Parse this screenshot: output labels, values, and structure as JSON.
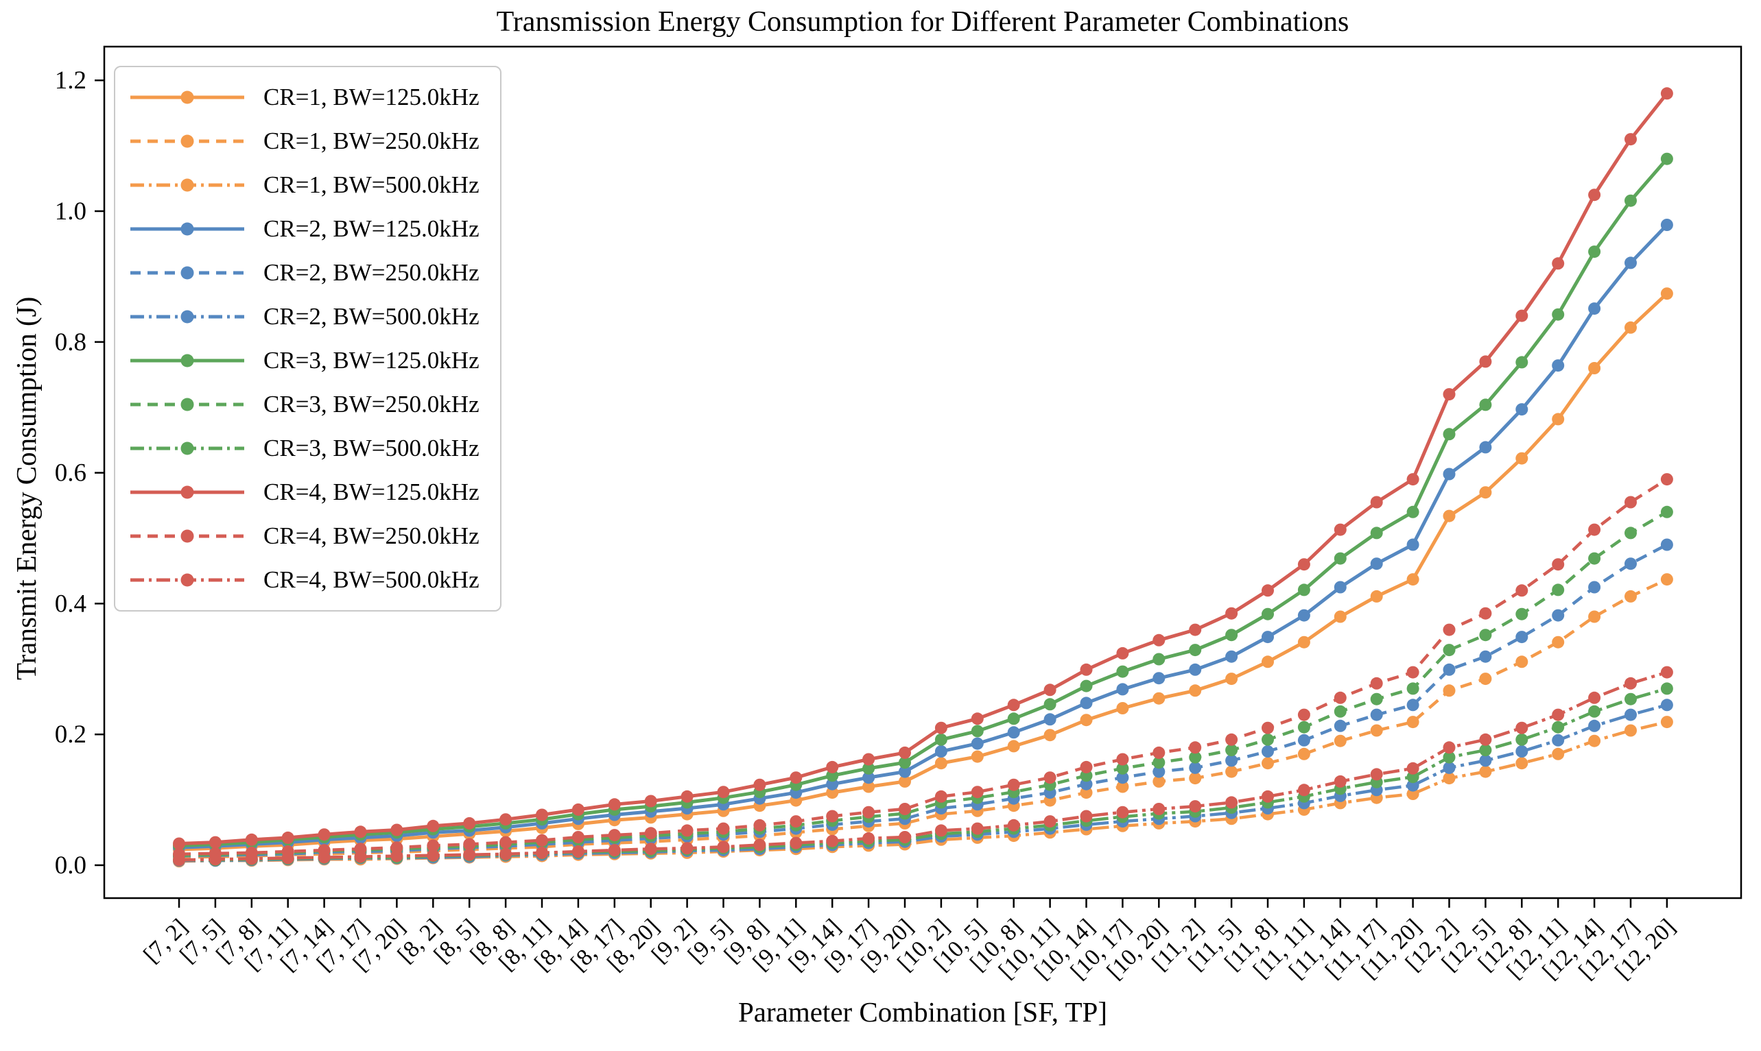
{
  "chart_data": {
    "type": "line",
    "title": "Transmission Energy Consumption for Different Parameter Combinations",
    "xlabel": "Parameter Combination [SF, TP]",
    "ylabel": "Transmit Energy Consumption (J)",
    "legend_position": "upper left",
    "grid": false,
    "ylim": [
      -0.05,
      1.25
    ],
    "yticks": [
      "0.0",
      "0.2",
      "0.4",
      "0.6",
      "0.8",
      "1.0",
      "1.2"
    ],
    "ytick_values": [
      0.0,
      0.2,
      0.4,
      0.6,
      0.8,
      1.0,
      1.2
    ],
    "categories": [
      "[7, 2]",
      "[7, 5]",
      "[7, 8]",
      "[7, 11]",
      "[7, 14]",
      "[7, 17]",
      "[7, 20]",
      "[8, 2]",
      "[8, 5]",
      "[8, 8]",
      "[8, 11]",
      "[8, 14]",
      "[8, 17]",
      "[8, 20]",
      "[9, 2]",
      "[9, 5]",
      "[9, 8]",
      "[9, 11]",
      "[9, 14]",
      "[9, 17]",
      "[9, 20]",
      "[10, 2]",
      "[10, 5]",
      "[10, 8]",
      "[10, 11]",
      "[10, 14]",
      "[10, 17]",
      "[10, 20]",
      "[11, 2]",
      "[11, 5]",
      "[11, 8]",
      "[11, 11]",
      "[11, 14]",
      "[11, 17]",
      "[11, 20]",
      "[12, 2]",
      "[12, 5]",
      "[12, 8]",
      "[12, 11]",
      "[12, 14]",
      "[12, 17]",
      "[12, 20]"
    ],
    "colors": {
      "cr1": "#F49A4A",
      "cr2": "#5588C1",
      "cr3": "#5CA65A",
      "cr4": "#D45D54"
    },
    "series": [
      {
        "name": "CR=1, BW=125.0kHz",
        "color": "#F49A4A",
        "style": "solid",
        "values": [
          0.024,
          0.026,
          0.029,
          0.031,
          0.035,
          0.038,
          0.04,
          0.044,
          0.048,
          0.052,
          0.057,
          0.063,
          0.069,
          0.073,
          0.078,
          0.083,
          0.091,
          0.099,
          0.111,
          0.12,
          0.128,
          0.156,
          0.166,
          0.182,
          0.199,
          0.222,
          0.24,
          0.255,
          0.267,
          0.285,
          0.311,
          0.341,
          0.38,
          0.411,
          0.437,
          0.534,
          0.57,
          0.622,
          0.682,
          0.76,
          0.822,
          0.874
        ]
      },
      {
        "name": "CR=1, BW=250.0kHz",
        "color": "#F49A4A",
        "style": "dashed",
        "values": [
          0.012,
          0.013,
          0.014,
          0.016,
          0.017,
          0.019,
          0.02,
          0.022,
          0.024,
          0.026,
          0.028,
          0.032,
          0.034,
          0.036,
          0.039,
          0.042,
          0.045,
          0.05,
          0.055,
          0.06,
          0.064,
          0.078,
          0.083,
          0.091,
          0.099,
          0.111,
          0.12,
          0.128,
          0.133,
          0.143,
          0.156,
          0.17,
          0.19,
          0.206,
          0.219,
          0.267,
          0.285,
          0.311,
          0.341,
          0.38,
          0.411,
          0.437
        ]
      },
      {
        "name": "CR=1, BW=500.0kHz",
        "color": "#F49A4A",
        "style": "dashdot",
        "values": [
          0.006,
          0.007,
          0.007,
          0.008,
          0.009,
          0.009,
          0.01,
          0.011,
          0.012,
          0.013,
          0.014,
          0.016,
          0.017,
          0.018,
          0.019,
          0.021,
          0.023,
          0.025,
          0.028,
          0.03,
          0.032,
          0.039,
          0.042,
          0.045,
          0.05,
          0.055,
          0.06,
          0.064,
          0.067,
          0.071,
          0.078,
          0.085,
          0.095,
          0.103,
          0.109,
          0.133,
          0.143,
          0.156,
          0.17,
          0.19,
          0.206,
          0.219
        ]
      },
      {
        "name": "CR=2, BW=125.0kHz",
        "color": "#5588C1",
        "style": "solid",
        "values": [
          0.027,
          0.029,
          0.032,
          0.035,
          0.039,
          0.042,
          0.045,
          0.05,
          0.053,
          0.058,
          0.064,
          0.071,
          0.077,
          0.082,
          0.087,
          0.093,
          0.102,
          0.111,
          0.124,
          0.134,
          0.143,
          0.174,
          0.186,
          0.203,
          0.223,
          0.248,
          0.269,
          0.286,
          0.299,
          0.319,
          0.349,
          0.382,
          0.425,
          0.461,
          0.49,
          0.598,
          0.639,
          0.697,
          0.764,
          0.851,
          0.921,
          0.979
        ]
      },
      {
        "name": "CR=2, BW=250.0kHz",
        "color": "#5588C1",
        "style": "dashed",
        "values": [
          0.014,
          0.015,
          0.016,
          0.017,
          0.02,
          0.021,
          0.022,
          0.025,
          0.027,
          0.029,
          0.032,
          0.035,
          0.038,
          0.041,
          0.044,
          0.047,
          0.051,
          0.056,
          0.062,
          0.067,
          0.071,
          0.087,
          0.093,
          0.102,
          0.111,
          0.124,
          0.134,
          0.143,
          0.149,
          0.16,
          0.174,
          0.191,
          0.213,
          0.23,
          0.245,
          0.299,
          0.319,
          0.349,
          0.382,
          0.425,
          0.461,
          0.49
        ]
      },
      {
        "name": "CR=2, BW=500.0kHz",
        "color": "#5588C1",
        "style": "dashdot",
        "values": [
          0.007,
          0.007,
          0.008,
          0.009,
          0.01,
          0.011,
          0.011,
          0.012,
          0.013,
          0.015,
          0.016,
          0.018,
          0.019,
          0.02,
          0.022,
          0.023,
          0.025,
          0.028,
          0.031,
          0.034,
          0.036,
          0.044,
          0.047,
          0.051,
          0.056,
          0.062,
          0.067,
          0.071,
          0.075,
          0.08,
          0.087,
          0.095,
          0.106,
          0.115,
          0.122,
          0.149,
          0.16,
          0.174,
          0.191,
          0.213,
          0.23,
          0.245
        ]
      },
      {
        "name": "CR=3, BW=125.0kHz",
        "color": "#5CA65A",
        "style": "solid",
        "values": [
          0.03,
          0.032,
          0.035,
          0.039,
          0.043,
          0.047,
          0.05,
          0.055,
          0.059,
          0.064,
          0.07,
          0.078,
          0.085,
          0.09,
          0.096,
          0.103,
          0.112,
          0.123,
          0.137,
          0.148,
          0.157,
          0.192,
          0.205,
          0.224,
          0.246,
          0.274,
          0.296,
          0.315,
          0.329,
          0.352,
          0.384,
          0.421,
          0.469,
          0.508,
          0.54,
          0.659,
          0.704,
          0.769,
          0.842,
          0.938,
          1.016,
          1.08
        ]
      },
      {
        "name": "CR=3, BW=250.0kHz",
        "color": "#5CA65A",
        "style": "dashed",
        "values": [
          0.015,
          0.016,
          0.018,
          0.019,
          0.022,
          0.023,
          0.025,
          0.027,
          0.029,
          0.032,
          0.035,
          0.039,
          0.042,
          0.045,
          0.048,
          0.051,
          0.056,
          0.061,
          0.068,
          0.074,
          0.079,
          0.096,
          0.103,
          0.112,
          0.123,
          0.137,
          0.148,
          0.157,
          0.165,
          0.176,
          0.192,
          0.211,
          0.235,
          0.254,
          0.27,
          0.329,
          0.352,
          0.384,
          0.421,
          0.469,
          0.508,
          0.54
        ]
      },
      {
        "name": "CR=3, BW=500.0kHz",
        "color": "#5CA65A",
        "style": "dashdot",
        "values": [
          0.008,
          0.008,
          0.009,
          0.01,
          0.011,
          0.012,
          0.012,
          0.014,
          0.015,
          0.016,
          0.018,
          0.02,
          0.021,
          0.022,
          0.024,
          0.026,
          0.028,
          0.031,
          0.034,
          0.037,
          0.039,
          0.048,
          0.051,
          0.056,
          0.061,
          0.068,
          0.074,
          0.079,
          0.082,
          0.088,
          0.096,
          0.105,
          0.117,
          0.127,
          0.135,
          0.165,
          0.176,
          0.192,
          0.211,
          0.235,
          0.254,
          0.27
        ]
      },
      {
        "name": "CR=4, BW=125.0kHz",
        "color": "#D45D54",
        "style": "solid",
        "values": [
          0.033,
          0.035,
          0.039,
          0.042,
          0.047,
          0.051,
          0.054,
          0.06,
          0.064,
          0.07,
          0.077,
          0.085,
          0.093,
          0.098,
          0.105,
          0.112,
          0.123,
          0.134,
          0.15,
          0.162,
          0.172,
          0.21,
          0.224,
          0.245,
          0.268,
          0.299,
          0.324,
          0.344,
          0.36,
          0.385,
          0.42,
          0.46,
          0.513,
          0.555,
          0.59,
          0.72,
          0.77,
          0.84,
          0.92,
          1.025,
          1.11,
          1.18
        ]
      },
      {
        "name": "CR=4, BW=250.0kHz",
        "color": "#D45D54",
        "style": "dashed",
        "values": [
          0.017,
          0.018,
          0.019,
          0.021,
          0.023,
          0.025,
          0.027,
          0.03,
          0.032,
          0.035,
          0.038,
          0.043,
          0.046,
          0.049,
          0.053,
          0.056,
          0.061,
          0.067,
          0.075,
          0.081,
          0.086,
          0.105,
          0.112,
          0.123,
          0.134,
          0.15,
          0.162,
          0.172,
          0.18,
          0.192,
          0.21,
          0.23,
          0.256,
          0.278,
          0.295,
          0.36,
          0.385,
          0.42,
          0.46,
          0.513,
          0.555,
          0.59
        ]
      },
      {
        "name": "CR=4, BW=500.0kHz",
        "color": "#D45D54",
        "style": "dashdot",
        "values": [
          0.008,
          0.009,
          0.01,
          0.011,
          0.012,
          0.013,
          0.014,
          0.015,
          0.016,
          0.017,
          0.019,
          0.021,
          0.023,
          0.025,
          0.026,
          0.028,
          0.031,
          0.034,
          0.037,
          0.041,
          0.043,
          0.053,
          0.056,
          0.061,
          0.067,
          0.075,
          0.081,
          0.086,
          0.09,
          0.096,
          0.105,
          0.115,
          0.128,
          0.139,
          0.148,
          0.18,
          0.192,
          0.21,
          0.23,
          0.256,
          0.278,
          0.295
        ]
      }
    ]
  }
}
